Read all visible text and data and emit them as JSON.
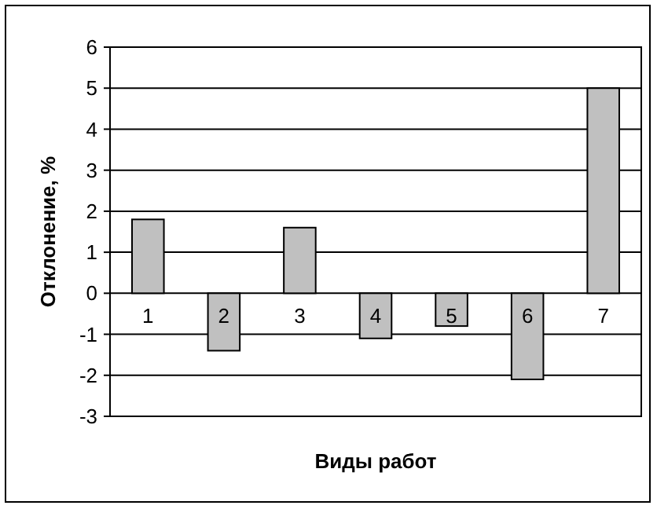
{
  "chart_data": {
    "type": "bar",
    "xlabel": "Виды работ",
    "ylabel": "Отклонение, %",
    "categories": [
      "1",
      "2",
      "3",
      "4",
      "5",
      "6",
      "7"
    ],
    "values": [
      1.8,
      -1.4,
      1.6,
      -1.1,
      -0.8,
      -2.1,
      5.0
    ],
    "color": "#c0c0c0",
    "ylim": [
      -3,
      6
    ],
    "yticks": [
      -3,
      -2,
      -1,
      0,
      1,
      2,
      3,
      4,
      5,
      6
    ],
    "grid": "y"
  }
}
